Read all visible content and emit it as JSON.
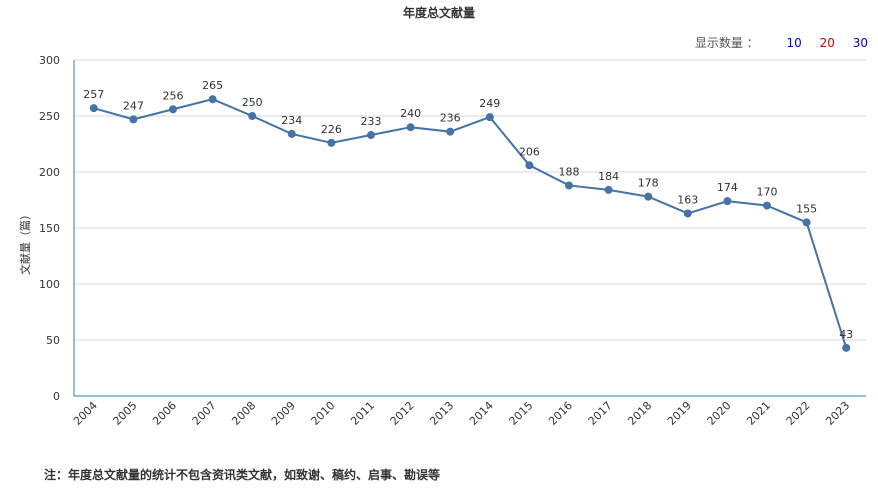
{
  "chart_data": {
    "type": "line",
    "title": "年度总文献量",
    "ylabel": "文献量（篇）",
    "xlabel": "",
    "x": [
      "2004",
      "2005",
      "2006",
      "2007",
      "2008",
      "2009",
      "2010",
      "2011",
      "2012",
      "2013",
      "2014",
      "2015",
      "2016",
      "2017",
      "2018",
      "2019",
      "2020",
      "2021",
      "2022",
      "2023"
    ],
    "values": [
      257,
      247,
      256,
      265,
      250,
      234,
      226,
      233,
      240,
      236,
      249,
      206,
      188,
      184,
      178,
      163,
      174,
      170,
      155,
      43
    ],
    "ylim": [
      0,
      300
    ],
    "yticks": [
      0,
      50,
      100,
      150,
      200,
      250,
      300
    ],
    "grid": true,
    "line_color": "#4572a7",
    "grid_color": "#d8d8d8",
    "axis_color": "#2a8aa0"
  },
  "display_count": {
    "label": "显示数量 ：",
    "options": [
      {
        "label": "10",
        "color": "#0000cc"
      },
      {
        "label": "20",
        "color": "#cc0000"
      },
      {
        "label": "30",
        "color": "#0000cc"
      }
    ]
  },
  "footnote": "注：年度总文献量的统计不包含资讯类文献，如致谢、稿约、启事、勘误等"
}
